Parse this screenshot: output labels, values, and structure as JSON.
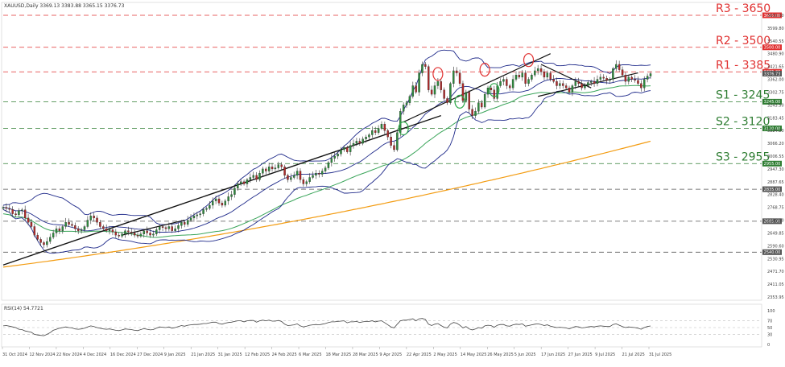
{
  "chart_data": {
    "type": "candlestick",
    "header": "XAUUSD,Daily  3369.13 3383.88 3365.15 3376.73",
    "rsi_label": "RSI(14) 54.7721",
    "y_ticks": [
      "3650.00",
      "3599.80",
      "3540.55",
      "3480.90",
      "3421.65",
      "3362.00",
      "3302.75",
      "3243.50",
      "3183.45",
      "3124.20",
      "3066.20",
      "3006.55",
      "2947.30",
      "2887.65",
      "2828.40",
      "2768.75",
      "2709.50",
      "2649.85",
      "2590.60",
      "2530.95",
      "2471.70",
      "2411.05",
      "2353.95"
    ],
    "y_range": [
      2330,
      3690
    ],
    "x_ticks": [
      "31 Oct 2024",
      "12 Nov 2024",
      "22 Nov 2024",
      "4 Dec 2024",
      "16 Dec 2024",
      "27 Dec 2024",
      "9 Jan 2025",
      "21 Jan 2025",
      "31 Jan 2025",
      "12 Feb 2025",
      "24 Feb 2025",
      "6 Mar 2025",
      "18 Mar 2025",
      "28 Mar 2025",
      "9 Apr 2025",
      "22 Apr 2025",
      "2 May 2025",
      "14 May 2025",
      "26 May 2025",
      "5 Jun 2025",
      "17 Jun 2025",
      "27 Jun 2025",
      "9 Jul 2025",
      "21 Jul 2025",
      "31 Jul 2025"
    ],
    "rsi_ticks": [
      "100",
      "70",
      "50",
      "30",
      "0"
    ],
    "levels": [
      {
        "label": "R3 - 3650",
        "value": 3650,
        "tag": "3650.00",
        "color": "#e03030"
      },
      {
        "label": "R2 - 3500",
        "value": 3500,
        "tag": "3500.00",
        "color": "#e03030"
      },
      {
        "label": "R1 - 3385",
        "value": 3385,
        "tag": "3385.00",
        "color": "#e03030"
      },
      {
        "label": "S1 - 3245",
        "value": 3245,
        "tag": "3245.00",
        "color": "#2e7d32"
      },
      {
        "label": "S2 - 3120",
        "value": 3120,
        "tag": "3120.00",
        "color": "#2e7d32"
      },
      {
        "label": "S3 - 2955",
        "value": 2955,
        "tag": "2955.00",
        "color": "#2e7d32"
      },
      {
        "value": 2835,
        "tag": "2835.00"
      },
      {
        "value": 2685,
        "tag": "2685.00"
      },
      {
        "value": 2540,
        "tag": "2540.00"
      }
    ],
    "current_price": {
      "value": 3376.73,
      "tag": "3376.73"
    },
    "close": [
      2750,
      2745,
      2740,
      2720,
      2715,
      2735,
      2738,
      2700,
      2680,
      2660,
      2620,
      2600,
      2585,
      2575,
      2590,
      2610,
      2630,
      2650,
      2640,
      2660,
      2680,
      2670,
      2665,
      2650,
      2640,
      2645,
      2660,
      2690,
      2710,
      2700,
      2680,
      2660,
      2650,
      2640,
      2645,
      2635,
      2620,
      2615,
      2625,
      2640,
      2635,
      2630,
      2620,
      2615,
      2625,
      2640,
      2630,
      2620,
      2625,
      2645,
      2660,
      2655,
      2650,
      2660,
      2640,
      2650,
      2665,
      2680,
      2670,
      2690,
      2700,
      2710,
      2715,
      2720,
      2740,
      2745,
      2760,
      2780,
      2790,
      2770,
      2760,
      2780,
      2800,
      2810,
      2840,
      2860,
      2870,
      2860,
      2880,
      2890,
      2900,
      2880,
      2910,
      2930,
      2920,
      2940,
      2930,
      2935,
      2950,
      2940,
      2900,
      2880,
      2890,
      2900,
      2920,
      2880,
      2860,
      2870,
      2890,
      2900,
      2910,
      2905,
      2920,
      2935,
      2960,
      2980,
      2990,
      3000,
      3020,
      3030,
      3010,
      3040,
      3050,
      3060,
      3050,
      3070,
      3080,
      3090,
      3110,
      3100,
      3120,
      3140,
      3110,
      3080,
      3040,
      3020,
      3100,
      3200,
      3230,
      3240,
      3270,
      3320,
      3290,
      3380,
      3420,
      3410,
      3300,
      3280,
      3320,
      3340,
      3300,
      3260,
      3240,
      3330,
      3390,
      3380,
      3330,
      3250,
      3290,
      3210,
      3180,
      3200,
      3240,
      3220,
      3280,
      3310,
      3300,
      3260,
      3320,
      3340,
      3350,
      3320,
      3310,
      3350,
      3370,
      3360,
      3380,
      3330,
      3350,
      3370,
      3390,
      3400,
      3385,
      3360,
      3380,
      3350,
      3340,
      3320,
      3330,
      3320,
      3310,
      3290,
      3320,
      3340,
      3330,
      3310,
      3320,
      3335,
      3340,
      3330,
      3350,
      3360,
      3355,
      3345,
      3350,
      3400,
      3420,
      3395,
      3370,
      3340,
      3360,
      3350,
      3345,
      3330,
      3310,
      3350,
      3365,
      3376.73
    ],
    "ma_slow_start": 2470,
    "ma_slow_end": 3060,
    "ma_fast_end": 3250,
    "rsi": [
      55,
      56,
      54,
      52,
      50,
      45,
      44,
      40,
      38,
      36,
      30,
      28,
      27,
      26,
      30,
      35,
      42,
      45,
      48,
      50,
      52,
      50,
      49,
      46,
      45,
      46,
      48,
      52,
      55,
      53,
      50,
      48,
      46,
      45,
      46,
      44,
      42,
      41,
      43,
      46,
      45,
      44,
      42,
      41,
      44,
      47,
      45,
      43,
      44,
      48,
      52,
      51,
      50,
      52,
      48,
      50,
      53,
      56,
      54,
      57,
      58,
      59,
      59,
      60,
      62,
      62,
      64,
      66,
      66,
      62,
      60,
      63,
      65,
      66,
      68,
      70,
      70,
      67,
      70,
      71,
      71,
      66,
      70,
      72,
      70,
      72,
      69,
      69,
      71,
      68,
      60,
      56,
      57,
      58,
      61,
      55,
      52,
      54,
      57,
      58,
      59,
      58,
      60,
      62,
      65,
      67,
      67,
      68,
      69,
      70,
      64,
      67,
      67,
      68,
      65,
      67,
      68,
      68,
      70,
      67,
      69,
      70,
      64,
      58,
      52,
      49,
      60,
      70,
      72,
      72,
      74,
      76,
      70,
      76,
      77,
      74,
      60,
      56,
      60,
      62,
      56,
      51,
      49,
      60,
      65,
      63,
      57,
      49,
      53,
      46,
      43,
      46,
      50,
      48,
      55,
      57,
      56,
      51,
      57,
      59,
      59,
      55,
      54,
      58,
      60,
      59,
      61,
      54,
      56,
      58,
      60,
      61,
      59,
      56,
      58,
      54,
      52,
      50,
      51,
      50,
      49,
      46,
      50,
      53,
      52,
      49,
      50,
      52,
      53,
      52,
      54,
      55,
      54,
      53,
      53,
      59,
      61,
      57,
      53,
      50,
      52,
      51,
      50,
      48,
      45,
      50,
      53,
      54.8
    ],
    "markers": {
      "circles_red": [
        [
          139,
          3375
        ],
        [
          154,
          3395
        ],
        [
          168,
          3440
        ]
      ],
      "circles_green": [
        [
          128,
          3120
        ],
        [
          146,
          3245
        ],
        [
          157,
          3300
        ]
      ]
    }
  }
}
